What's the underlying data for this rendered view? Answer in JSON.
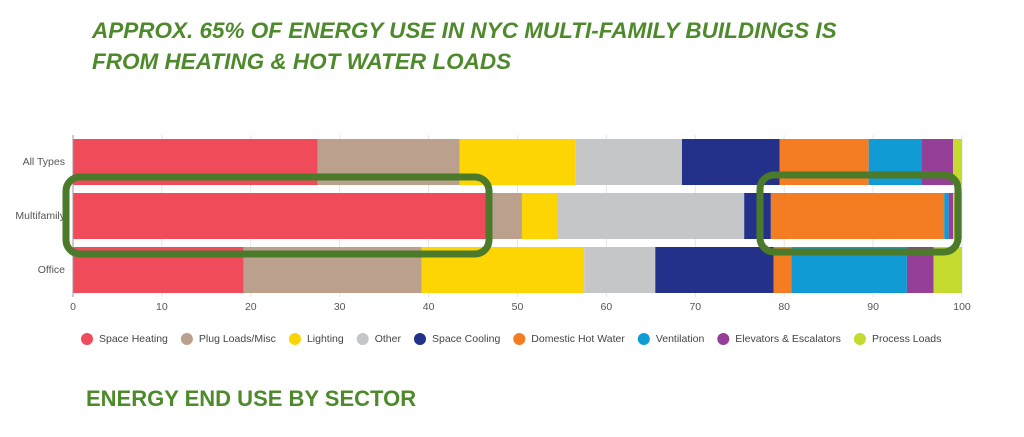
{
  "chart_data": {
    "type": "bar",
    "orientation": "horizontal",
    "stacked": true,
    "title": [
      "APPROX. 65% OF ENERGY USE IN NYC MULTI-FAMILY BUILDINGS IS",
      "FROM HEATING & HOT WATER LOADS"
    ],
    "caption": "ENERGY END USE BY SECTOR",
    "categories": [
      "All Types",
      "Multifamily",
      "Office"
    ],
    "series": [
      {
        "name": "Space Heating",
        "color": "#ef4b5b",
        "values": [
          27.5,
          47,
          19.2
        ]
      },
      {
        "name": "Plug Loads/Misc",
        "color": "#bca08e",
        "values": [
          16,
          3.5,
          20
        ]
      },
      {
        "name": "Lighting",
        "color": "#fdd503",
        "values": [
          13,
          4,
          18.3
        ]
      },
      {
        "name": "Other",
        "color": "#c5c6c8",
        "values": [
          12,
          21,
          8
        ]
      },
      {
        "name": "Space Cooling",
        "color": "#23318a",
        "values": [
          11,
          3,
          13.3
        ]
      },
      {
        "name": "Domestic Hot Water",
        "color": "#f47c22",
        "values": [
          10,
          19.5,
          2
        ]
      },
      {
        "name": "Ventilation",
        "color": "#119bd5",
        "values": [
          6,
          0.5,
          13
        ]
      },
      {
        "name": "Elevators & Escalators",
        "color": "#953f98",
        "values": [
          3.5,
          0.5,
          3
        ]
      },
      {
        "name": "Process Loads",
        "color": "#c5da2f",
        "values": [
          1,
          1,
          3.2
        ]
      }
    ],
    "xlim": [
      0,
      100
    ],
    "xticks": [
      0,
      10,
      20,
      30,
      40,
      50,
      60,
      70,
      80,
      90,
      100
    ],
    "grid": true
  }
}
